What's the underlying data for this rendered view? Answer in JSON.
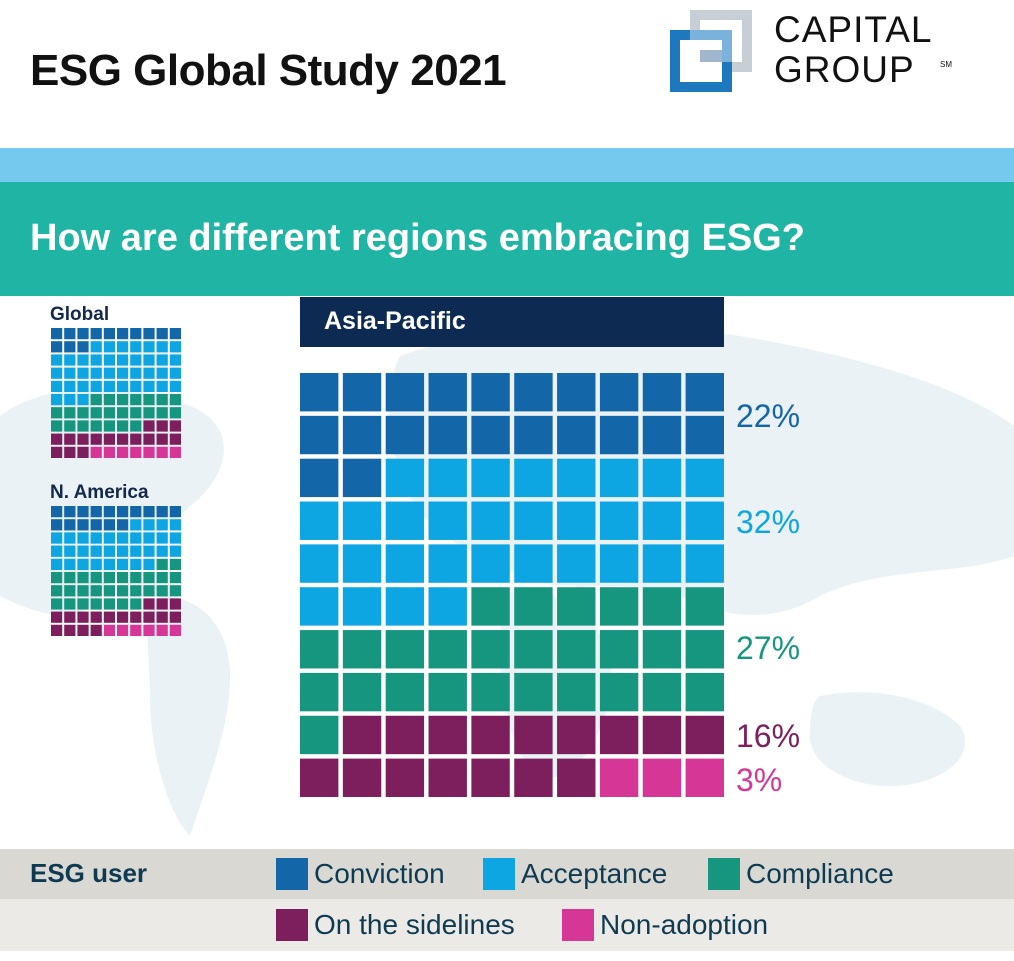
{
  "header": {
    "title": "ESG Global Study 2021"
  },
  "logo": {
    "line1": "CAPITAL",
    "line2": "GROUP",
    "mark": "SM"
  },
  "banner": {
    "subtitle": "How are different regions embracing ESG?"
  },
  "colors": {
    "Conviction": "#1366a8",
    "Acceptance": "#0ea5e3",
    "Compliance": "#16957f",
    "On the sidelines": "#7e1f5d",
    "Non-adoption": "#d63796"
  },
  "chart_data": [
    {
      "type": "waffle",
      "title": "Asia-Pacific",
      "grid": [
        10,
        10
      ],
      "categories": [
        "Conviction",
        "Acceptance",
        "Compliance",
        "On the sidelines",
        "Non-adoption"
      ],
      "values": [
        22,
        32,
        27,
        16,
        3
      ],
      "labels": [
        "22%",
        "32%",
        "27%",
        "16%",
        "3%"
      ]
    },
    {
      "type": "waffle",
      "title": "Global",
      "grid": [
        10,
        10
      ],
      "categories": [
        "Conviction",
        "Acceptance",
        "Compliance",
        "On the sidelines",
        "Non-adoption"
      ],
      "values": [
        13,
        40,
        24,
        16,
        7
      ]
    },
    {
      "type": "waffle",
      "title": "N. America",
      "grid": [
        10,
        10
      ],
      "categories": [
        "Conviction",
        "Acceptance",
        "Compliance",
        "On the sidelines",
        "Non-adoption"
      ],
      "values": [
        16,
        32,
        29,
        17,
        6
      ]
    }
  ],
  "legend": {
    "title": "ESG user",
    "items": [
      {
        "label": "Conviction",
        "icon": "conviction-swatch"
      },
      {
        "label": "Acceptance",
        "icon": "acceptance-swatch"
      },
      {
        "label": "Compliance",
        "icon": "compliance-swatch"
      },
      {
        "label": "On the sidelines",
        "icon": "sidelines-swatch"
      },
      {
        "label": "Non-adoption",
        "icon": "non-adoption-swatch"
      }
    ]
  }
}
